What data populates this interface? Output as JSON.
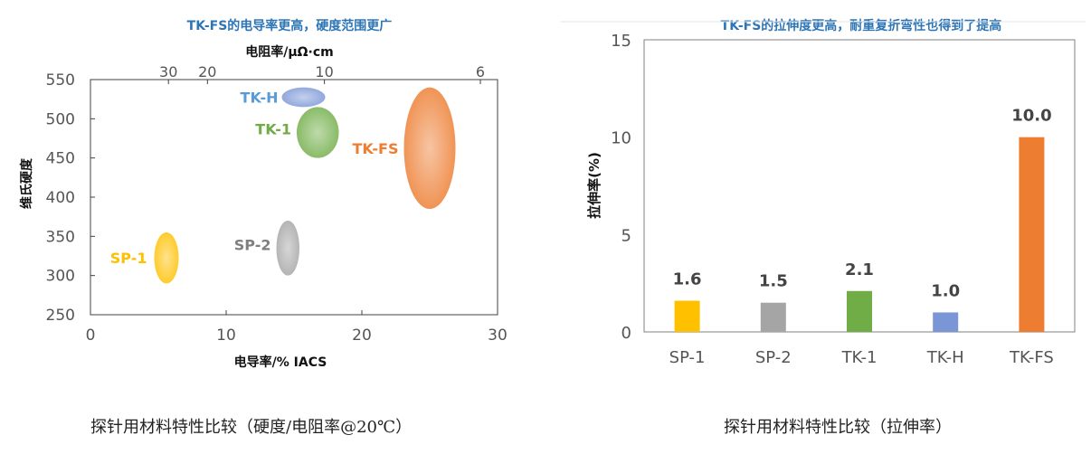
{
  "colors": {
    "title_blue": "#2E75B6",
    "SP-1": "#FFC000",
    "SP-2": "#A5A5A5",
    "TK-1": "#70AD47",
    "TK-H": "#7B96D6",
    "TK-H_label": "#5B9BD5",
    "TK-FS": "#ED7D31",
    "axis": "#404040"
  },
  "captions": {
    "left": "探针用材料特性比较（硬度/电阻率@20℃）",
    "right": "探针用材料特性比较（拉伸率）"
  },
  "chart_data": [
    {
      "type": "scatter",
      "title": "TK-FS的电导率更高，硬度范围更广",
      "xlabel": "电导率/% IACS",
      "ylabel": "维氏硬度",
      "x2label": "电阻率/μΩ·cm",
      "xlim": [
        0,
        30
      ],
      "ylim": [
        250,
        550
      ],
      "xticks": [
        0,
        10,
        20,
        30
      ],
      "yticks": [
        250,
        300,
        350,
        400,
        450,
        500,
        550
      ],
      "x2ticks": [
        30,
        20,
        10,
        6
      ],
      "grid": false,
      "series": [
        {
          "name": "SP-1",
          "x_range": [
            4.7,
            6.5
          ],
          "y_range": [
            290,
            355
          ]
        },
        {
          "name": "SP-2",
          "x_range": [
            13.7,
            15.4
          ],
          "y_range": [
            300,
            370
          ]
        },
        {
          "name": "TK-1",
          "x_range": [
            15.2,
            18.3
          ],
          "y_range": [
            450,
            515
          ]
        },
        {
          "name": "TK-H",
          "x_range": [
            14.1,
            17.3
          ],
          "y_range": [
            515,
            540
          ]
        },
        {
          "name": "TK-FS",
          "x_range": [
            23.1,
            26.9
          ],
          "y_range": [
            385,
            540
          ]
        }
      ]
    },
    {
      "type": "bar",
      "title": "TK-FS的拉伸度更高，耐重复折弯性也得到了提高",
      "ylabel": "拉伸率(%)",
      "categories": [
        "SP-1",
        "SP-2",
        "TK-1",
        "TK-H",
        "TK-FS"
      ],
      "values": [
        1.6,
        1.5,
        2.1,
        1.0,
        10.0
      ],
      "data_labels": [
        "1.6",
        "1.5",
        "2.1",
        "1.0",
        "10.0"
      ],
      "ylim": [
        0,
        15
      ],
      "yticks": [
        0,
        5,
        10,
        15
      ],
      "grid": false
    }
  ]
}
